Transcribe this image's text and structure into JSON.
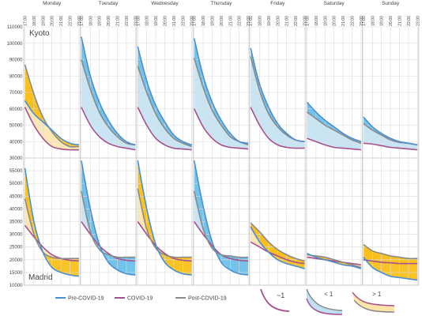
{
  "chart_data": {
    "type": "line",
    "days": [
      "Monday",
      "Tuesday",
      "Wednesday",
      "Thursday",
      "Friday",
      "Saturday",
      "Sunday"
    ],
    "hours": [
      "17:00",
      "18:00",
      "19:00",
      "20:00",
      "21:00",
      "22:00",
      "23:00"
    ],
    "legend": {
      "position": "bottom-left",
      "entries": [
        {
          "key": "pre",
          "label": "Pre-COVID-19"
        },
        {
          "key": "covid",
          "label": "COVID-19"
        },
        {
          "key": "post",
          "label": "Post-COVID-19"
        }
      ]
    },
    "colors": {
      "pre": "#4a8fd0",
      "covid": "#a8508f",
      "post": "#8a8a8a",
      "blue_fill": "#bfe0f1",
      "blue_strong": "#5bb8e6",
      "orange_fill": "#fde3a8",
      "orange_strong": "#f8b800"
    },
    "pictograms": [
      {
        "label": "~1",
        "kind": "covid"
      },
      {
        "label": "< 1",
        "kind": "blue"
      },
      {
        "label": "> 1",
        "kind": "orange"
      }
    ],
    "panels": [
      {
        "city": "Kyoto",
        "ylim": [
          30000,
          110000
        ],
        "yticks": [
          30000,
          40000,
          50000,
          60000,
          70000,
          80000,
          90000,
          100000,
          110000
        ],
        "series": {
          "pre": [
            [
              65000,
              57000,
              52000,
              47000,
              42000,
              39000,
              38000
            ],
            [
              104000,
              80000,
              64000,
              53000,
              45000,
              40000,
              38000
            ],
            [
              98000,
              77000,
              62000,
              52000,
              44000,
              40000,
              38000
            ],
            [
              103000,
              80000,
              64000,
              53000,
              45000,
              40000,
              39000
            ],
            [
              97000,
              75000,
              61000,
              51000,
              45000,
              41000,
              40000
            ],
            [
              64000,
              58000,
              53000,
              49000,
              45000,
              42000,
              40000
            ],
            [
              55000,
              49000,
              45000,
              42000,
              40000,
              39000,
              38000
            ]
          ],
          "covid": [
            [
              61000,
              50000,
              42000,
              37000,
              35500,
              35000,
              35000
            ],
            [
              61000,
              50000,
              43000,
              39000,
              37000,
              36000,
              35000
            ],
            [
              61000,
              50000,
              42000,
              38000,
              36000,
              35500,
              35000
            ],
            [
              60000,
              49000,
              42000,
              38000,
              36500,
              36000,
              35500
            ],
            [
              61000,
              50000,
              42000,
              38000,
              36500,
              36000,
              36000
            ],
            [
              42000,
              40000,
              38000,
              36500,
              36000,
              35500,
              35000
            ],
            [
              39000,
              38500,
              37500,
              36500,
              36000,
              35500,
              35000
            ]
          ],
          "post": [
            [
              87000,
              69000,
              55000,
              46000,
              40000,
              37000,
              37000
            ],
            [
              90000,
              72000,
              58000,
              49000,
              43000,
              39000,
              38000
            ],
            [
              86000,
              70000,
              57000,
              48000,
              42000,
              39000,
              37000
            ],
            [
              91000,
              73000,
              59000,
              50000,
              43000,
              40000,
              38000
            ],
            [
              92000,
              71000,
              57000,
              49000,
              44000,
              41000,
              40000
            ],
            [
              58000,
              54000,
              50000,
              47000,
              44000,
              41000,
              39000
            ],
            [
              51000,
              47000,
              44000,
              41000,
              39500,
              39000,
              38000
            ]
          ]
        }
      },
      {
        "city": "Madrid",
        "ylim": [
          10000,
          60000
        ],
        "yticks": [
          10000,
          15000,
          20000,
          25000,
          30000,
          35000,
          40000,
          45000,
          50000,
          55000,
          60000
        ],
        "series": {
          "pre": [
            [
              56000,
              35000,
              23000,
              17000,
              15000,
              14000,
              13500
            ],
            [
              59000,
              40000,
              26000,
              19000,
              16000,
              14500,
              14000
            ],
            [
              59000,
              40000,
              26000,
              19000,
              16000,
              14500,
              14000
            ],
            [
              59000,
              41000,
              27000,
              19000,
              16000,
              14500,
              14000
            ],
            [
              33000,
              27000,
              23000,
              20000,
              18500,
              17500,
              16500
            ],
            [
              22500,
              21000,
              20000,
              19000,
              18000,
              17500,
              16500
            ],
            [
              21000,
              17000,
              15000,
              13500,
              13000,
              12500,
              12000
            ]
          ],
          "covid": [
            [
              33500,
              29000,
              25000,
              22000,
              20500,
              19800,
              19500
            ],
            [
              35000,
              30000,
              25500,
              22500,
              20500,
              19800,
              19500
            ],
            [
              35000,
              30000,
              25500,
              22500,
              20500,
              19800,
              19500
            ],
            [
              35000,
              30000,
              25500,
              22000,
              20500,
              19800,
              19500
            ],
            [
              27000,
              25000,
              23000,
              21500,
              20000,
              19000,
              18500
            ],
            [
              21000,
              20500,
              20000,
              19500,
              19000,
              18500,
              18000
            ],
            [
              20000,
              19500,
              19000,
              18800,
              18500,
              18500,
              18500
            ]
          ],
          "post": [
            [
              44000,
              30000,
              23000,
              21000,
              20500,
              20500,
              20500
            ],
            [
              47000,
              31000,
              24000,
              22000,
              21000,
              21000,
              21000
            ],
            [
              48000,
              32000,
              24500,
              22000,
              21000,
              21000,
              21000
            ],
            [
              47000,
              32000,
              24500,
              22000,
              21500,
              21000,
              21000
            ],
            [
              34500,
              31000,
              27000,
              24000,
              22000,
              20500,
              19500
            ],
            [
              22000,
              21500,
              21000,
              20000,
              19000,
              18000,
              17000
            ],
            [
              26000,
              23500,
              22500,
              21500,
              21000,
              20500,
              20500
            ]
          ]
        }
      }
    ]
  }
}
